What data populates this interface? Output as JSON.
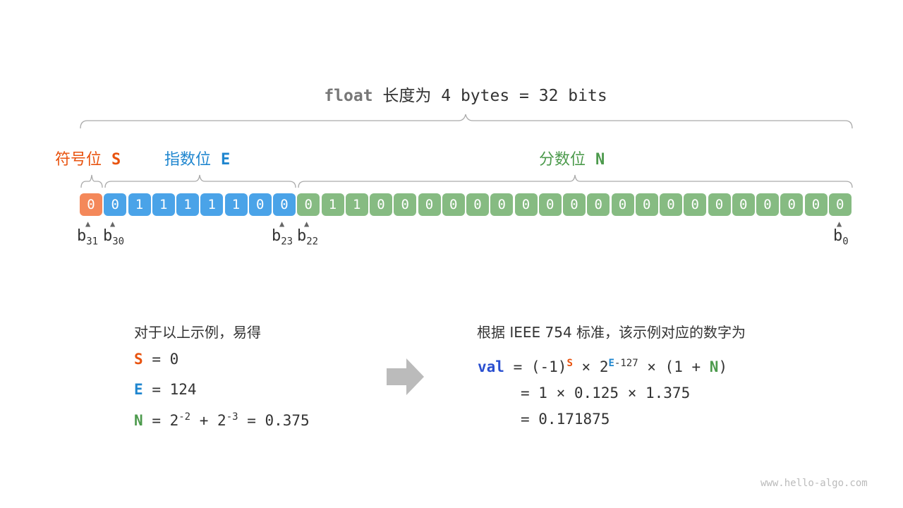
{
  "title": {
    "keyword": "float",
    "rest": "长度为 4 bytes = 32 bits"
  },
  "sections": {
    "sign": {
      "label": "符号位",
      "symbol": "S",
      "color": "#F4885A",
      "text_color": "#E8530F"
    },
    "exponent": {
      "label": "指数位",
      "symbol": "E",
      "color": "#4AA3E8",
      "text_color": "#1F86CF"
    },
    "fraction": {
      "label": "分数位",
      "symbol": "N",
      "color": "#86BB82",
      "text_color": "#4C9A4C"
    }
  },
  "bits": [
    "0",
    "0",
    "1",
    "1",
    "1",
    "1",
    "1",
    "0",
    "0",
    "0",
    "1",
    "1",
    "0",
    "0",
    "0",
    "0",
    "0",
    "0",
    "0",
    "0",
    "0",
    "0",
    "0",
    "0",
    "0",
    "0",
    "0",
    "0",
    "0",
    "0",
    "0",
    "0"
  ],
  "bit_labels": {
    "b31": {
      "base": "b",
      "sub": "31"
    },
    "b30": {
      "base": "b",
      "sub": "30"
    },
    "b23": {
      "base": "b",
      "sub": "23"
    },
    "b22": {
      "base": "b",
      "sub": "22"
    },
    "b0": {
      "base": "b",
      "sub": "0"
    }
  },
  "left": {
    "heading": "对于以上示例，易得",
    "s": {
      "sym": "S",
      "rhs": "= 0"
    },
    "e": {
      "sym": "E",
      "rhs": "= 124"
    },
    "n": {
      "sym": "N",
      "eq": "= 2",
      "exp1": "-2",
      "plus": " + 2",
      "exp2": "-3",
      "rest": " = 0.375"
    }
  },
  "right": {
    "heading": "根据 IEEE 754 标准，该示例对应的数字为",
    "val": "val",
    "val_color": "#2A4FD0",
    "line1": {
      "a": "= (-1)",
      "s": "S",
      "b": " × 2",
      "e": "E",
      "e_rest": "-127",
      "c": " × (1 + ",
      "n": "N",
      "d": ")"
    },
    "line2": "= 1 × 0.125 × 1.375",
    "line3": "= 0.171875"
  },
  "watermark": "www.hello-algo.com"
}
